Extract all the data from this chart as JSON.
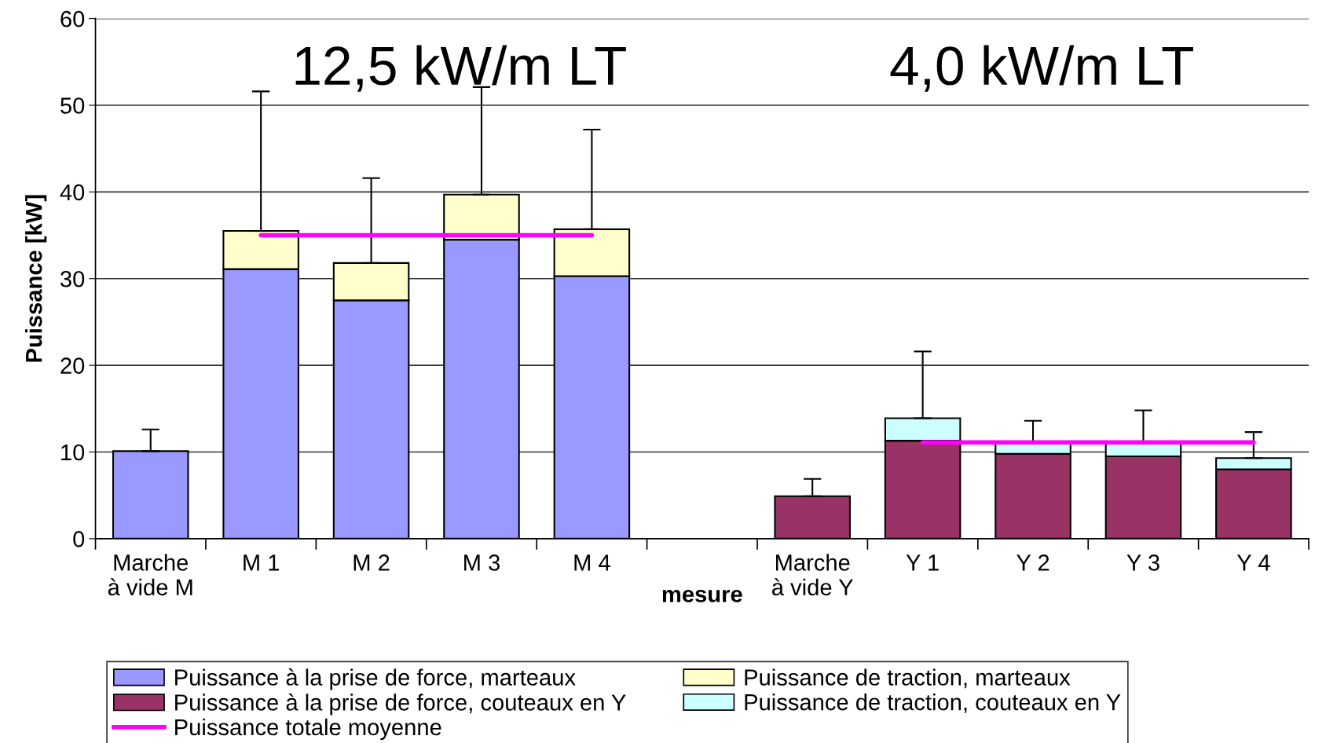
{
  "chart_data": {
    "type": "bar",
    "stacked": true,
    "ylabel": "Puissance [kW]",
    "xlabel": "mesure",
    "categories": [
      "Marche\nà vide M",
      "M 1",
      "M 2",
      "M 3",
      "M 4",
      null,
      "Marche\nà vide Y",
      "Y 1",
      "Y 2",
      "Y 3",
      "Y 4"
    ],
    "series": [
      {
        "name": "Puissance à la prise de force, marteaux",
        "color": "#9999ff",
        "values": [
          10.1,
          31.1,
          27.5,
          34.5,
          30.3,
          null,
          null,
          null,
          null,
          null,
          null
        ],
        "errors": [
          [
            10.1,
            12.6
          ],
          null,
          null,
          null,
          null,
          null,
          null,
          null,
          null,
          null,
          null
        ]
      },
      {
        "name": "Puissance de traction, marteaux",
        "color": "#ffffcc",
        "values": [
          null,
          4.4,
          4.3,
          5.2,
          5.4,
          null,
          null,
          null,
          null,
          null,
          null
        ],
        "errors": [
          null,
          [
            35.5,
            51.6
          ],
          [
            31.8,
            41.6
          ],
          [
            39.7,
            52.1
          ],
          [
            35.7,
            47.2
          ],
          null,
          null,
          null,
          null,
          null,
          null
        ]
      },
      {
        "name": "Puissance à la prise de force, couteaux en Y",
        "color": "#993366",
        "values": [
          null,
          null,
          null,
          null,
          null,
          null,
          4.9,
          11.3,
          9.8,
          9.5,
          8.0
        ],
        "errors": [
          null,
          null,
          null,
          null,
          null,
          null,
          [
            4.9,
            6.9
          ],
          null,
          null,
          null,
          null
        ]
      },
      {
        "name": "Puissance de traction, couteaux en Y",
        "color": "#ccffff",
        "values": [
          null,
          null,
          null,
          null,
          null,
          null,
          null,
          2.6,
          1.2,
          1.5,
          1.3
        ],
        "errors": [
          null,
          null,
          null,
          null,
          null,
          null,
          null,
          [
            13.9,
            21.6
          ],
          [
            11.0,
            13.6
          ],
          [
            11.0,
            14.8
          ],
          [
            9.3,
            12.3
          ]
        ]
      },
      {
        "name": "Puissance totale moyenne",
        "type": "line",
        "color": "#ff00ff",
        "values": [
          null,
          35,
          35,
          35,
          35,
          null,
          null,
          11.1,
          11.1,
          11.1,
          11.1
        ]
      }
    ],
    "ylim": [
      0,
      60
    ],
    "yticks": [
      0,
      10,
      20,
      30,
      40,
      50,
      60
    ],
    "grid": "y",
    "legend": "bottom",
    "annotations": [
      "12,5 kW/m LT",
      "4,0 kW/m LT"
    ]
  }
}
